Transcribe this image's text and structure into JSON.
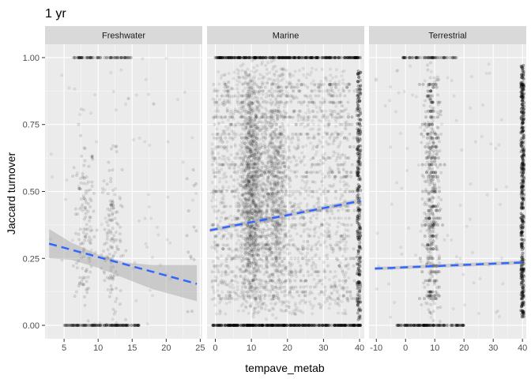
{
  "chart_data": {
    "type": "scatter",
    "title": "1 yr",
    "xlabel": "tempave_metab",
    "ylabel": "Jaccard turnover",
    "ylim": [
      -0.05,
      1.05
    ],
    "y_ticks": [
      0.0,
      0.25,
      0.5,
      0.75,
      1.0
    ],
    "y_tick_labels": [
      "0.00",
      "0.25",
      "0.50",
      "0.75",
      "1.00"
    ],
    "colors": {
      "panel_bg": "#ebebeb",
      "strip_bg": "#d9d9d9",
      "grid": "#ffffff",
      "points": "#000000",
      "trend_line": "#3366ff",
      "ribbon": "#999999"
    },
    "panels": [
      {
        "name": "Freshwater",
        "xlim": [
          2.2,
          25.3
        ],
        "x_ticks": [
          5,
          10,
          15,
          20,
          25
        ],
        "x_tick_labels": [
          "5",
          "10",
          "15",
          "20",
          "25"
        ],
        "trend": {
          "x": [
            2.8,
            24.5
          ],
          "y": [
            0.305,
            0.155
          ]
        },
        "ribbon": {
          "x": [
            2.8,
            6,
            10,
            14,
            18,
            24.5
          ],
          "upper": [
            0.36,
            0.31,
            0.265,
            0.235,
            0.225,
            0.225
          ],
          "lower": [
            0.25,
            0.245,
            0.215,
            0.175,
            0.135,
            0.09
          ]
        },
        "clusters": [
          {
            "xmin": 2.8,
            "xmax": 24.5,
            "ymin": 0,
            "ymax": 1,
            "n": 80,
            "spread": "uniform",
            "alpha": 0.07,
            "levels": "any"
          },
          {
            "xmin": 6.5,
            "xmax": 9.5,
            "ymin": 0.02,
            "ymax": 0.72,
            "n": 130,
            "spread": "normal",
            "alpha": 0.1,
            "levels": "any"
          },
          {
            "xmin": 10.5,
            "xmax": 13.5,
            "ymin": 0.02,
            "ymax": 0.62,
            "n": 140,
            "spread": "normal",
            "alpha": 0.1,
            "levels": "any"
          },
          {
            "xmin": 5,
            "xmax": 16,
            "ymin": 0,
            "ymax": 0,
            "n": 140,
            "spread": "uniform",
            "alpha": 0.18,
            "levels": "any"
          },
          {
            "xmin": 6,
            "xmax": 15,
            "ymin": 1,
            "ymax": 1,
            "n": 70,
            "spread": "uniform",
            "alpha": 0.18,
            "levels": "any"
          },
          {
            "xmin": 23,
            "xmax": 24.5,
            "ymin": 0.05,
            "ymax": 0.62,
            "n": 14,
            "spread": "uniform",
            "alpha": 0.12,
            "levels": "any"
          }
        ]
      },
      {
        "name": "Marine",
        "xlim": [
          -2.3,
          41.3
        ],
        "x_ticks": [
          0,
          10,
          20,
          30,
          40
        ],
        "x_tick_labels": [
          "0",
          "10",
          "20",
          "30",
          "40"
        ],
        "trend": {
          "x": [
            -1.5,
            40.3
          ],
          "y": [
            0.355,
            0.465
          ]
        },
        "ribbon": {
          "x": [
            -1.5,
            40.3
          ],
          "upper": [
            0.362,
            0.474
          ],
          "lower": [
            0.348,
            0.456
          ]
        },
        "clusters": [
          {
            "xmin": -1,
            "xmax": 37,
            "ymin": 0.04,
            "ymax": 0.96,
            "n": 1400,
            "spread": "uniform",
            "alpha": 0.07,
            "levels": "any"
          },
          {
            "xmin": 7,
            "xmax": 13,
            "ymin": 0.02,
            "ymax": 0.98,
            "n": 1200,
            "spread": "normal",
            "alpha": 0.08,
            "levels": "any"
          },
          {
            "xmin": 13,
            "xmax": 20,
            "ymin": 0.05,
            "ymax": 0.95,
            "n": 700,
            "spread": "normal",
            "alpha": 0.08,
            "levels": "any"
          },
          {
            "xmin": -1,
            "xmax": 40.3,
            "ymin": 0.05,
            "ymax": 0.95,
            "n": 900,
            "spread": "uniform",
            "alpha": 0.1,
            "levels": "fractions"
          },
          {
            "xmin": 39.3,
            "xmax": 40.3,
            "ymin": 0.02,
            "ymax": 0.95,
            "n": 260,
            "spread": "uniform",
            "alpha": 0.25,
            "levels": "any"
          },
          {
            "xmin": -1,
            "xmax": 40.3,
            "ymin": 0,
            "ymax": 0,
            "n": 320,
            "spread": "uniform",
            "alpha": 0.25,
            "levels": "any"
          },
          {
            "xmin": 0,
            "xmax": 40.3,
            "ymin": 1,
            "ymax": 1,
            "n": 260,
            "spread": "uniform",
            "alpha": 0.25,
            "levels": "any"
          }
        ]
      },
      {
        "name": "Terrestrial",
        "xlim": [
          -12.5,
          41.3
        ],
        "x_ticks": [
          -10,
          0,
          10,
          20,
          30,
          40
        ],
        "x_tick_labels": [
          "-10",
          "0",
          "10",
          "20",
          "30",
          "40"
        ],
        "trend": {
          "x": [
            -10.5,
            40.3
          ],
          "y": [
            0.212,
            0.235
          ]
        },
        "ribbon": {
          "x": [
            -10.5,
            40.3
          ],
          "upper": [
            0.218,
            0.242
          ],
          "lower": [
            0.206,
            0.228
          ]
        },
        "clusters": [
          {
            "xmin": -10.5,
            "xmax": 35,
            "ymin": 0.02,
            "ymax": 0.98,
            "n": 90,
            "spread": "uniform",
            "alpha": 0.07,
            "levels": "any"
          },
          {
            "xmin": 6,
            "xmax": 12,
            "ymin": 0.02,
            "ymax": 0.98,
            "n": 320,
            "spread": "normal",
            "alpha": 0.1,
            "levels": "any"
          },
          {
            "xmin": 6,
            "xmax": 12,
            "ymin": 0.1,
            "ymax": 0.9,
            "n": 200,
            "spread": "normal",
            "alpha": 0.18,
            "levels": "fractions"
          },
          {
            "xmin": -3,
            "xmax": 20,
            "ymin": 0,
            "ymax": 0,
            "n": 130,
            "spread": "uniform",
            "alpha": 0.2,
            "levels": "any"
          },
          {
            "xmin": -1,
            "xmax": 18,
            "ymin": 1,
            "ymax": 1,
            "n": 60,
            "spread": "uniform",
            "alpha": 0.2,
            "levels": "any"
          },
          {
            "xmin": 39.5,
            "xmax": 40.5,
            "ymin": 0.03,
            "ymax": 0.98,
            "n": 340,
            "spread": "uniform",
            "alpha": 0.3,
            "levels": "any"
          }
        ]
      }
    ]
  }
}
